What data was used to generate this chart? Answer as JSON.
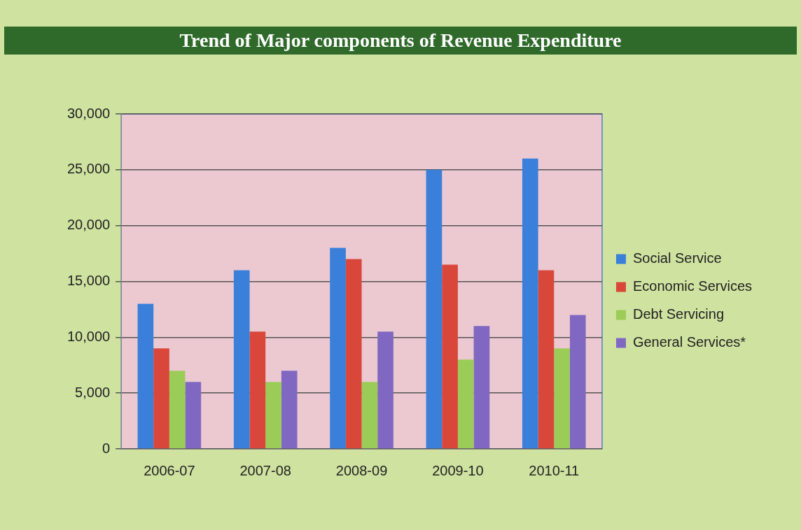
{
  "chart_data": {
    "type": "bar",
    "title": "Trend of Major components of Revenue Expenditure",
    "categories": [
      "2006-07",
      "2007-08",
      "2008-09",
      "2009-10",
      "2010-11"
    ],
    "series": [
      {
        "name": "Social Service",
        "color": "#3a7fd9",
        "values": [
          13000,
          16000,
          18000,
          25000,
          26000
        ]
      },
      {
        "name": "Economic Services",
        "color": "#d9473b",
        "values": [
          9000,
          10500,
          17000,
          16500,
          16000
        ]
      },
      {
        "name": "Debt Servicing",
        "color": "#9ccc58",
        "values": [
          7000,
          6000,
          6000,
          8000,
          9000
        ]
      },
      {
        "name": "General Services*",
        "color": "#8068c2",
        "values": [
          6000,
          7000,
          10500,
          11000,
          12000
        ]
      }
    ],
    "ylim": [
      0,
      30000
    ],
    "yticks": [
      0,
      {
        "value": 5000,
        "label": "5,000"
      },
      {
        "value": 10000,
        "label": "10,000"
      },
      {
        "value": 15000,
        "label": "15,000"
      },
      {
        "value": 20000,
        "label": "20,000"
      },
      {
        "value": 25000,
        "label": "25,000"
      },
      {
        "value": 30000,
        "label": "30,000"
      }
    ],
    "grid": "y",
    "legend": "right"
  }
}
